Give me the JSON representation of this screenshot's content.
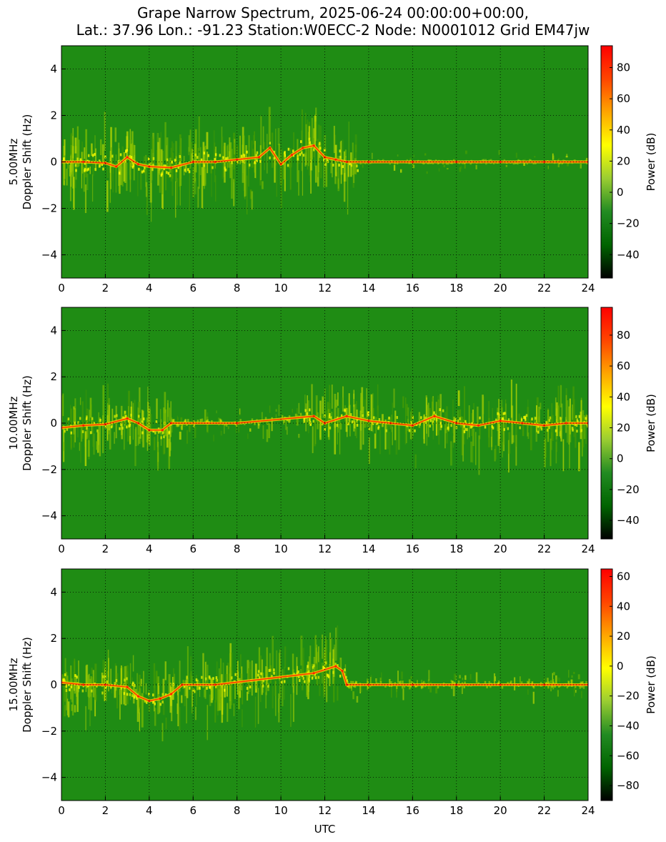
{
  "figure": {
    "title_line1": "Grape Narrow Spectrum, 2025-06-24 00:00:00+00:00,",
    "title_line2": "Lat.: 37.96 Lon.: -91.23 Station:W0ECC-2 Node: N0001012 Grid EM47jw",
    "shared_xlabel": "UTC"
  },
  "colors": {
    "colormap": [
      "#000000",
      "#006400",
      "#228B22",
      "#9ACD32",
      "#FFFF00",
      "#FFA500",
      "#FF4500",
      "#FF0000"
    ],
    "background_green": "#1f8c14",
    "grid": "#000000"
  },
  "chart_data": [
    {
      "type": "heatmap",
      "panel": "5 MHz",
      "ylabel_line1": "5.00MHz",
      "ylabel_line2": "Doppler Shift (Hz)",
      "xlim": [
        0,
        24
      ],
      "ylim": [
        -5,
        5
      ],
      "xticks": [
        0,
        2,
        4,
        6,
        8,
        10,
        12,
        14,
        16,
        18,
        20,
        22,
        24
      ],
      "yticks": [
        -4,
        -2,
        0,
        2,
        4
      ],
      "grid": true,
      "colorbar": {
        "label": "Power (dB)",
        "range": [
          -55,
          94
        ],
        "ticks": [
          -40,
          -20,
          0,
          20,
          40,
          60,
          80
        ]
      },
      "carrier_trace": {
        "x": [
          0,
          1,
          2,
          2.5,
          3,
          3.5,
          4,
          5,
          6,
          7,
          8,
          9,
          9.5,
          10,
          10.5,
          11,
          11.5,
          12,
          12.5,
          13,
          14,
          16,
          18,
          20,
          22,
          24
        ],
        "y": [
          0,
          0,
          -0.05,
          -0.2,
          0.2,
          -0.1,
          -0.2,
          -0.25,
          0,
          0,
          0.1,
          0.2,
          0.6,
          -0.1,
          0.3,
          0.6,
          0.7,
          0.2,
          0.1,
          0,
          0,
          0,
          0,
          0,
          0,
          0
        ]
      },
      "diffuse_activity": "strong spread from 0 to 13 UTC, quiet carrier line from 14 to 24 UTC"
    },
    {
      "type": "heatmap",
      "panel": "10 MHz",
      "ylabel_line1": "10.00MHz",
      "ylabel_line2": "Doppler Shift (Hz)",
      "xlim": [
        0,
        24
      ],
      "ylim": [
        -5,
        5
      ],
      "xticks": [
        0,
        2,
        4,
        6,
        8,
        10,
        12,
        14,
        16,
        18,
        20,
        22,
        24
      ],
      "yticks": [
        -4,
        -2,
        0,
        2,
        4
      ],
      "grid": true,
      "colorbar": {
        "label": "Power (dB)",
        "range": [
          -52,
          98
        ],
        "ticks": [
          -40,
          -20,
          0,
          20,
          40,
          60,
          80
        ]
      },
      "carrier_trace": {
        "x": [
          0,
          1,
          2,
          3,
          3.5,
          4,
          4.6,
          5,
          8,
          11.5,
          12,
          13,
          14,
          15,
          16,
          17,
          18,
          19,
          20,
          21,
          22,
          23,
          24
        ],
        "y": [
          -0.2,
          -0.1,
          -0.05,
          0.2,
          0,
          -0.3,
          -0.3,
          0,
          0,
          0.3,
          0,
          0.3,
          0.1,
          0,
          -0.1,
          0.3,
          0,
          -0.1,
          0.1,
          0,
          -0.1,
          0,
          0
        ]
      },
      "diffuse_activity": "spread 0-5 UTC and 11-24 UTC, weak carrier 5-11 UTC"
    },
    {
      "type": "heatmap",
      "panel": "15 MHz",
      "ylabel_line1": "15.00MHz",
      "ylabel_line2": "Doppler Shift (Hz)",
      "xlim": [
        0,
        24
      ],
      "ylim": [
        -5,
        5
      ],
      "xticks": [
        0,
        2,
        4,
        6,
        8,
        10,
        12,
        14,
        16,
        18,
        20,
        22,
        24
      ],
      "yticks": [
        -4,
        -2,
        0,
        2,
        4
      ],
      "grid": true,
      "colorbar": {
        "label": "Power (dB)",
        "range": [
          -90,
          65
        ],
        "ticks": [
          -80,
          -60,
          -40,
          -20,
          0,
          20,
          40,
          60
        ]
      },
      "carrier_trace": {
        "x": [
          0,
          1,
          2,
          3,
          3.5,
          4,
          4.5,
          5,
          5.5,
          7,
          11.5,
          12.5,
          12.8,
          13,
          14,
          16,
          18,
          20,
          22,
          24
        ],
        "y": [
          0.1,
          0,
          0,
          -0.1,
          -0.5,
          -0.7,
          -0.6,
          -0.4,
          0,
          0,
          0.5,
          0.8,
          0.6,
          0,
          0,
          0,
          0,
          0,
          0,
          0
        ]
      },
      "diffuse_activity": "spread 0-13 UTC, carrier line 13-24 UTC"
    }
  ]
}
